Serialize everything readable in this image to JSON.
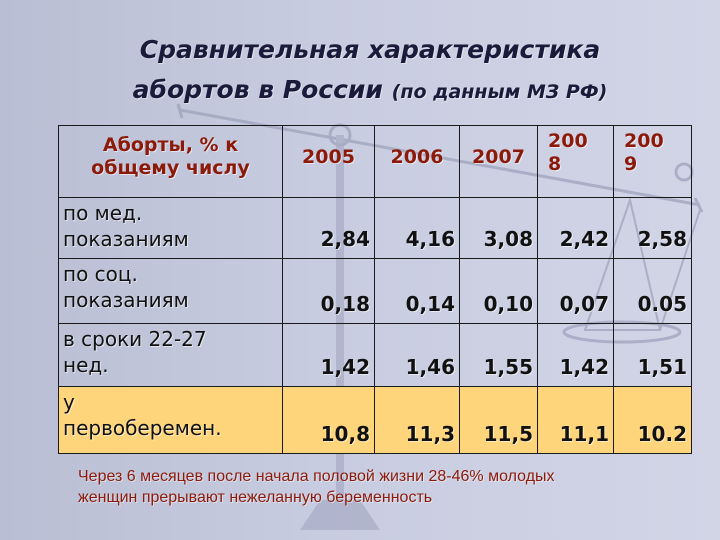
{
  "title": {
    "line1": "Сравнительная характеристика",
    "line2_main": "абортов в России",
    "line2_sub": "(по данным МЗ РФ)"
  },
  "table": {
    "header_label_1": "Аборты, % к",
    "header_label_2": "общему числу",
    "years": [
      {
        "l1": "2005",
        "l2": ""
      },
      {
        "l1": "2006",
        "l2": ""
      },
      {
        "l1": "2007",
        "l2": ""
      },
      {
        "l1": "200",
        "l2": "8"
      },
      {
        "l1": "200",
        "l2": "9"
      }
    ],
    "rows": [
      {
        "label1": "по мед.",
        "label2": "показаниям",
        "values": [
          "2,84",
          "4,16",
          "3,08",
          "2,42",
          "2,58"
        ]
      },
      {
        "label1": "по соц.",
        "label2": "показаниям",
        "values": [
          "0,18",
          "0,14",
          "0,10",
          "0,07",
          "0.05"
        ]
      },
      {
        "label1": "в сроки 22-27",
        "label2": "нед.",
        "values": [
          "1,42",
          "1,46",
          "1,55",
          "1,42",
          "1,51"
        ]
      },
      {
        "label1": "у",
        "label2": "первоберемен.",
        "values": [
          "10,8",
          "11,3",
          "11,5",
          "11,1",
          "10.2"
        ]
      }
    ]
  },
  "note": {
    "line1": "Через 6 месяцев после начала половой жизни 28-46% молодых",
    "line2": "женщин прерывают нежеланную беременность"
  },
  "colors": {
    "accent": "#8b1a0b",
    "highlight_row": "#fed57b",
    "background": "#c8cce0"
  }
}
